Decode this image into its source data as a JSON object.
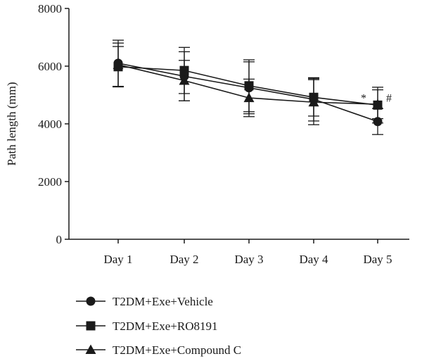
{
  "chart_data": {
    "type": "line",
    "ylabel": "Path length (mm)",
    "ylim": [
      0,
      8000
    ],
    "yticks": [
      0,
      2000,
      4000,
      6000,
      8000
    ],
    "categories": [
      "Day 1",
      "Day 2",
      "Day 3",
      "Day 4",
      "Day 5"
    ],
    "grid": false,
    "legend_position": "bottom-left",
    "series": [
      {
        "name": "T2DM+Exe+Vehicle",
        "marker": "circle",
        "values": [
          6100,
          5650,
          5250,
          4850,
          4080
        ],
        "error": [
          800,
          850,
          900,
          750,
          450
        ]
      },
      {
        "name": "T2DM+Exe+RO8191",
        "marker": "square",
        "values": [
          5980,
          5850,
          5320,
          4920,
          4650
        ],
        "error": [
          700,
          800,
          900,
          650,
          620
        ]
      },
      {
        "name": "T2DM+Exe+Compound C",
        "marker": "triangle",
        "values": [
          6050,
          5500,
          4900,
          4750,
          4680
        ],
        "error": [
          750,
          700,
          650,
          780,
          500
        ]
      }
    ],
    "annotations": [
      {
        "text": "*",
        "category": "Day 5"
      },
      {
        "text": "#",
        "category": "Day 5"
      }
    ]
  },
  "colors": {
    "line": "#1a1a1a",
    "background": "#ffffff"
  }
}
